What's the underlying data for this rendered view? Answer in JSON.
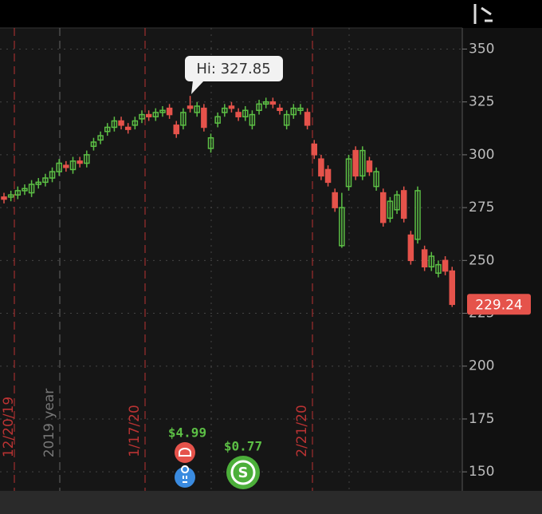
{
  "chart_data": {
    "type": "candlestick",
    "open": [
      280,
      280,
      281,
      283,
      282,
      286,
      287,
      289,
      292,
      295,
      293,
      297,
      296,
      304,
      307,
      311,
      313,
      316,
      313,
      314,
      317,
      319,
      318,
      320,
      322,
      314,
      314,
      323,
      320,
      322,
      303,
      315,
      320,
      323,
      320,
      318,
      314,
      321,
      324,
      325,
      322,
      314,
      319,
      321,
      320,
      305,
      298,
      293,
      282,
      257,
      285,
      302,
      290,
      297,
      285,
      282,
      270,
      274,
      283,
      262,
      260,
      255,
      247,
      244,
      250,
      245
    ],
    "high": [
      282,
      283,
      285,
      286,
      288,
      289,
      291,
      294,
      298,
      297,
      299,
      299,
      302,
      308,
      311,
      315,
      318,
      318,
      315,
      318,
      321,
      321,
      322,
      323,
      324,
      316,
      322,
      327.85,
      325,
      324,
      310,
      320,
      324,
      325,
      322,
      323,
      321,
      326,
      327,
      327,
      324,
      321,
      324,
      324,
      322,
      307,
      300,
      295,
      284,
      282,
      300,
      304,
      304,
      299,
      294,
      284,
      280,
      283,
      285,
      264,
      285,
      257,
      254,
      250,
      252,
      247
    ],
    "low": [
      277,
      278,
      279,
      281,
      280,
      284,
      285,
      287,
      290,
      292,
      291,
      294,
      294,
      302,
      305,
      309,
      311,
      312,
      310,
      312,
      315,
      316,
      316,
      318,
      317,
      308,
      312,
      320,
      318,
      311,
      301,
      313,
      318,
      320,
      316,
      316,
      312,
      319,
      322,
      322,
      319,
      312,
      317,
      319,
      312,
      298,
      288,
      285,
      273,
      256,
      283,
      288,
      288,
      290,
      283,
      266,
      268,
      272,
      268,
      248,
      258,
      245,
      245,
      242,
      243,
      228
    ],
    "close": [
      279,
      281,
      283,
      284,
      286,
      287,
      289,
      292,
      296,
      294,
      297,
      296,
      300,
      306,
      309,
      313,
      316,
      314,
      312,
      316,
      319,
      318,
      320,
      321,
      319,
      310,
      320,
      322,
      323,
      313,
      308,
      318,
      322,
      322,
      318,
      321,
      319,
      324,
      325,
      324,
      321,
      319,
      322,
      322,
      314,
      300,
      290,
      287,
      275,
      275,
      298,
      290,
      302,
      292,
      292,
      268,
      278,
      281,
      270,
      250,
      283,
      247,
      252,
      248,
      245,
      229.24
    ],
    "up_color": "#5cbf45",
    "down_color": "#e5534b",
    "ylim": [
      141,
      360
    ],
    "yticks": [
      150,
      175,
      200,
      225,
      250,
      275,
      300,
      325,
      350
    ],
    "grid": true,
    "high_annotation": "Hi: 327.85",
    "last_price_label": "229.24",
    "period_labels": [
      "12/20/19",
      "2019 year",
      "1/17/20",
      "2/21/20"
    ],
    "event_labels": [
      "$4.99",
      "$0.77"
    ]
  }
}
